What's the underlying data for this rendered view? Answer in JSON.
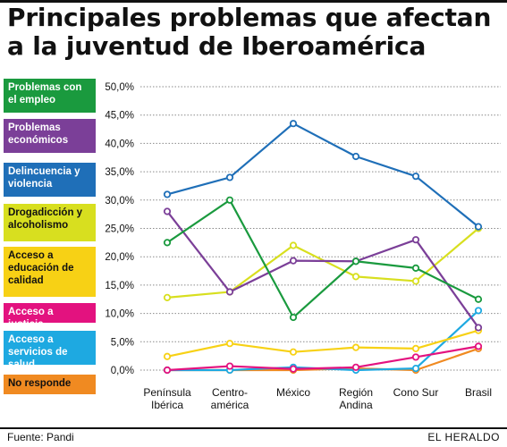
{
  "title_line1": "Principales problemas que afectan",
  "title_line2": "a la juventud de Iberoamérica",
  "source": "Fuente: Pandi",
  "brand": "EL HERALDO",
  "chart_data": {
    "type": "line",
    "title": "Principales problemas que afectan a la juventud de Iberoamérica",
    "categories": [
      [
        "Península",
        "Ibérica"
      ],
      [
        "Centro-",
        "américa"
      ],
      [
        "México"
      ],
      [
        "Región",
        "Andina"
      ],
      [
        "Cono Sur"
      ],
      [
        "Brasil"
      ]
    ],
    "y_ticks": [
      "50,0%",
      "45,0%",
      "40,0%",
      "35,0%",
      "30,0%",
      "25,0%",
      "20,0%",
      "15,0%",
      "10,0%",
      "5,0%",
      "0,0%"
    ],
    "ylim": [
      0,
      50
    ],
    "grid": true,
    "legend_placement": "left",
    "series": [
      {
        "name": "Problemas con el empleo",
        "label_lines": [
          "Problemas con",
          "el empleo"
        ],
        "color": "#1a9a3e",
        "text_color": "#ffffff",
        "values": [
          22.5,
          30.0,
          9.3,
          19.2,
          18.0,
          12.5
        ]
      },
      {
        "name": "Problemas económicos",
        "label_lines": [
          "Problemas",
          "económicos"
        ],
        "color": "#7b3f98",
        "text_color": "#ffffff",
        "values": [
          28.0,
          13.8,
          19.3,
          19.2,
          23.0,
          7.5
        ]
      },
      {
        "name": "Delincuencia y violencia",
        "label_lines": [
          "Delincuencia y",
          "violencia"
        ],
        "color": "#1f6fb8",
        "text_color": "#ffffff",
        "values": [
          31.0,
          34.0,
          43.5,
          37.7,
          34.2,
          25.3
        ]
      },
      {
        "name": "Drogadicción y alcoholismo",
        "label_lines": [
          "Drogadicción y",
          "alcoholismo"
        ],
        "color": "#d8df1f",
        "text_color": "#111111",
        "values": [
          12.8,
          13.8,
          22.0,
          16.5,
          15.7,
          25.0
        ]
      },
      {
        "name": "Acceso a educación de calidad",
        "label_lines": [
          "Acceso a",
          "educación de",
          "calidad"
        ],
        "color": "#f7d115",
        "text_color": "#111111",
        "values": [
          2.4,
          4.7,
          3.2,
          4.0,
          3.8,
          7.0
        ]
      },
      {
        "name": "Acceso a justicia",
        "label_lines": [
          "Acceso a justicia"
        ],
        "color": "#e3127f",
        "text_color": "#ffffff",
        "values": [
          0.0,
          0.7,
          0.2,
          0.5,
          2.3,
          4.2
        ]
      },
      {
        "name": "Acceso a servicios de salud",
        "label_lines": [
          "Acceso a",
          "servicios de salud"
        ],
        "color": "#1ea9e1",
        "text_color": "#ffffff",
        "values": [
          0.0,
          0.0,
          0.5,
          0.0,
          0.3,
          10.5
        ]
      },
      {
        "name": "No responde",
        "label_lines": [
          "No responde"
        ],
        "color": "#f08a21",
        "text_color": "#111111",
        "values": [
          0.0,
          0.0,
          0.0,
          0.3,
          0.0,
          3.8
        ]
      }
    ]
  }
}
